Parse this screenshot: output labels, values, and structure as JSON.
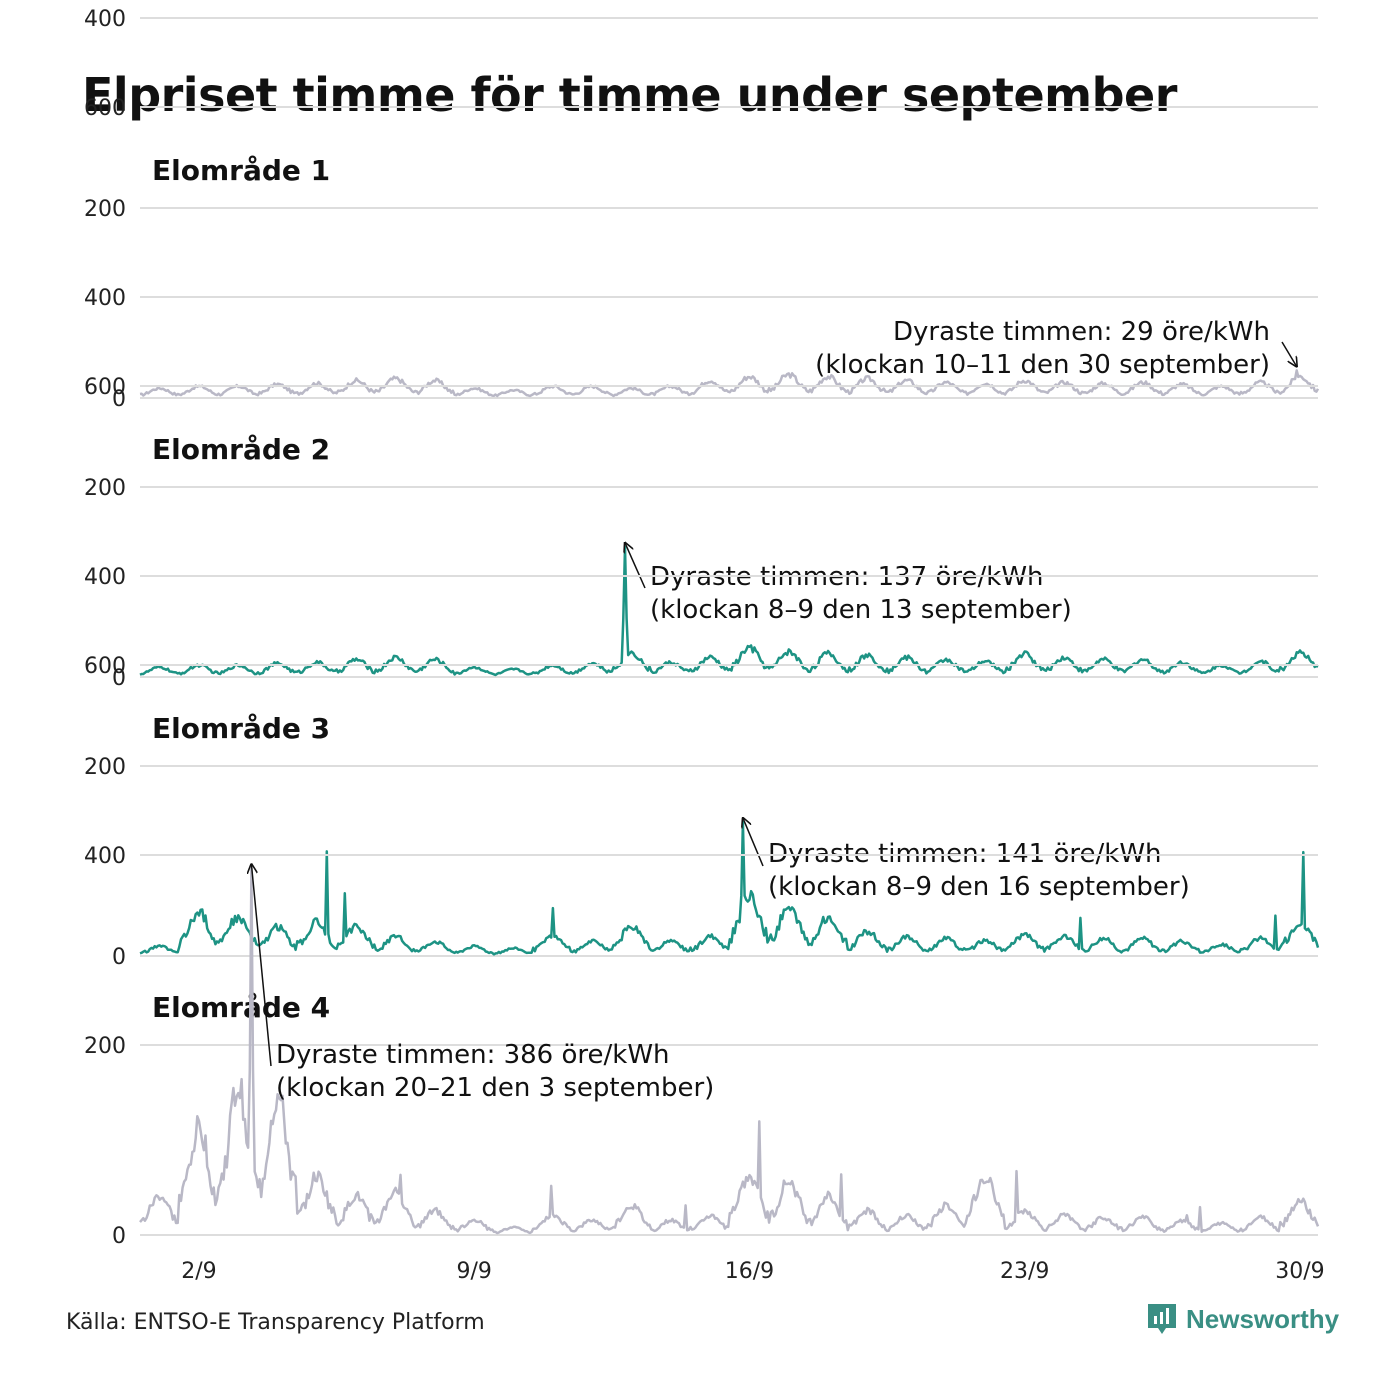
{
  "title": "Elpriset timme för timme under september",
  "source": "Källa: ENTSO-E Transparency Platform",
  "brand": {
    "name": "Newsworthy",
    "logo_icon": "newsworthy-logo-icon",
    "color": "#3a8f84"
  },
  "chart_data": {
    "type": "line",
    "x_ticks": [
      "2/9",
      "9/9",
      "16/9",
      "23/9",
      "30/9"
    ],
    "y_ticks": [
      "0",
      "200",
      "400",
      "600"
    ],
    "ylim": [
      0,
      600
    ],
    "grid": true,
    "colors": {
      "grey": "#b9b8c6",
      "teal": "#1d9384",
      "gridline": "#dddddd"
    },
    "panels": [
      {
        "title": "Elområde 1",
        "color": "#b9b8c6",
        "peak": {
          "value": 29,
          "day": 30,
          "hour": 10
        },
        "annotation": [
          "Dyraste timmen: 29 öre/kWh",
          "(klockan 10–11 den 30 september)"
        ],
        "profile": [
          [
            1,
            10
          ],
          [
            2,
            12
          ],
          [
            3,
            12
          ],
          [
            4,
            14
          ],
          [
            5,
            15
          ],
          [
            6,
            18
          ],
          [
            7,
            20
          ],
          [
            8,
            18
          ],
          [
            9,
            10
          ],
          [
            10,
            8
          ],
          [
            11,
            12
          ],
          [
            12,
            12
          ],
          [
            13,
            10
          ],
          [
            14,
            12
          ],
          [
            15,
            18
          ],
          [
            16,
            22
          ],
          [
            17,
            24
          ],
          [
            18,
            22
          ],
          [
            19,
            20
          ],
          [
            20,
            18
          ],
          [
            21,
            16
          ],
          [
            22,
            15
          ],
          [
            23,
            18
          ],
          [
            24,
            16
          ],
          [
            25,
            15
          ],
          [
            26,
            16
          ],
          [
            27,
            14
          ],
          [
            28,
            12
          ],
          [
            29,
            16
          ],
          [
            30,
            22
          ]
        ]
      },
      {
        "title": "Elområde 2",
        "color": "#1d9384",
        "peak": {
          "value": 137,
          "day": 13,
          "hour": 8
        },
        "annotation": [
          "Dyraste timmen: 137 öre/kWh",
          "(klockan 8–9 den 13 september)"
        ],
        "profile": [
          [
            1,
            10
          ],
          [
            2,
            12
          ],
          [
            3,
            12
          ],
          [
            4,
            14
          ],
          [
            5,
            15
          ],
          [
            6,
            18
          ],
          [
            7,
            20
          ],
          [
            8,
            18
          ],
          [
            9,
            10
          ],
          [
            10,
            8
          ],
          [
            11,
            12
          ],
          [
            12,
            14
          ],
          [
            13,
            25
          ],
          [
            14,
            15
          ],
          [
            15,
            20
          ],
          [
            16,
            30
          ],
          [
            17,
            26
          ],
          [
            18,
            24
          ],
          [
            19,
            22
          ],
          [
            20,
            20
          ],
          [
            21,
            18
          ],
          [
            22,
            16
          ],
          [
            23,
            24
          ],
          [
            24,
            20
          ],
          [
            25,
            18
          ],
          [
            26,
            18
          ],
          [
            27,
            15
          ],
          [
            28,
            12
          ],
          [
            29,
            16
          ],
          [
            30,
            25
          ]
        ]
      },
      {
        "title": "Elområde 3",
        "color": "#1d9384",
        "peak": {
          "value": 141,
          "day": 16,
          "hour": 8
        },
        "annotation": [
          "Dyraste timmen: 141 öre/kWh",
          "(klockan 8–9 den 16 september)"
        ],
        "profile": [
          [
            1,
            10
          ],
          [
            2,
            45
          ],
          [
            3,
            40
          ],
          [
            4,
            30
          ],
          [
            5,
            35
          ],
          [
            6,
            30
          ],
          [
            7,
            20
          ],
          [
            8,
            15
          ],
          [
            9,
            10
          ],
          [
            10,
            8
          ],
          [
            11,
            20
          ],
          [
            12,
            15
          ],
          [
            13,
            30
          ],
          [
            14,
            15
          ],
          [
            15,
            20
          ],
          [
            16,
            60
          ],
          [
            17,
            50
          ],
          [
            18,
            40
          ],
          [
            19,
            25
          ],
          [
            20,
            20
          ],
          [
            21,
            18
          ],
          [
            22,
            16
          ],
          [
            23,
            22
          ],
          [
            24,
            20
          ],
          [
            25,
            18
          ],
          [
            26,
            18
          ],
          [
            27,
            15
          ],
          [
            28,
            12
          ],
          [
            29,
            18
          ],
          [
            30,
            35
          ]
        ]
      },
      {
        "title": "Elområde 4",
        "color": "#b9b8c6",
        "peak": {
          "value": 386,
          "day": 3,
          "hour": 20
        },
        "annotation": [
          "Dyraste timmen: 386 öre/kWh",
          "(klockan 20–21 den 3 september)"
        ],
        "profile": [
          [
            1,
            40
          ],
          [
            2,
            110
          ],
          [
            3,
            150
          ],
          [
            4,
            140
          ],
          [
            5,
            60
          ],
          [
            6,
            40
          ],
          [
            7,
            45
          ],
          [
            8,
            25
          ],
          [
            9,
            15
          ],
          [
            10,
            8
          ],
          [
            11,
            20
          ],
          [
            12,
            15
          ],
          [
            13,
            30
          ],
          [
            14,
            15
          ],
          [
            15,
            20
          ],
          [
            16,
            60
          ],
          [
            17,
            55
          ],
          [
            18,
            40
          ],
          [
            19,
            25
          ],
          [
            20,
            20
          ],
          [
            21,
            30
          ],
          [
            22,
            60
          ],
          [
            23,
            25
          ],
          [
            24,
            20
          ],
          [
            25,
            18
          ],
          [
            26,
            18
          ],
          [
            27,
            15
          ],
          [
            28,
            12
          ],
          [
            29,
            18
          ],
          [
            30,
            35
          ]
        ]
      }
    ]
  }
}
